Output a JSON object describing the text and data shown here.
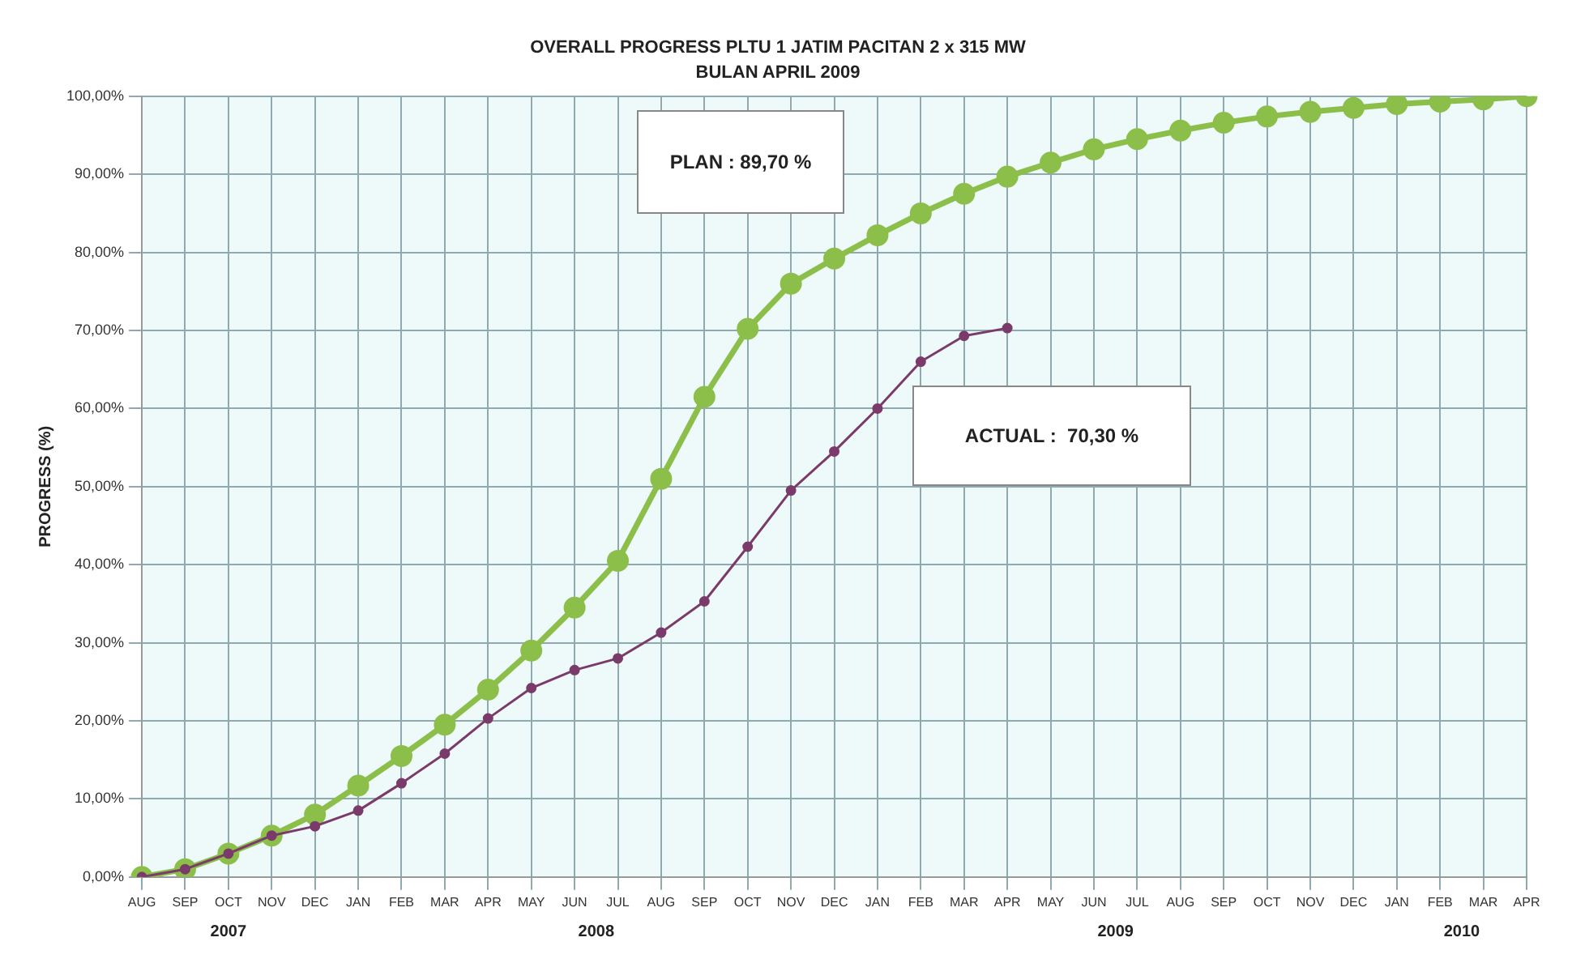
{
  "chart_data": {
    "type": "line",
    "title": "OVERALL PROGRESS PLTU 1 JATIM PACITAN 2 x 315 MW",
    "subtitle": "BULAN APRIL 2009",
    "ylabel": "PROGRESS (%)",
    "categories": [
      "AUG",
      "SEP",
      "OCT",
      "NOV",
      "DEC",
      "JAN",
      "FEB",
      "MAR",
      "APR",
      "MAY",
      "JUN",
      "JUL",
      "AUG",
      "SEP",
      "OCT",
      "NOV",
      "DEC",
      "JAN",
      "FEB",
      "MAR",
      "APR",
      "MAY",
      "JUN",
      "JUL",
      "AUG",
      "SEP",
      "OCT",
      "NOV",
      "DEC",
      "JAN",
      "FEB",
      "MAR",
      "APR"
    ],
    "series": [
      {
        "color": "#8cbf4a",
        "values": [
          0,
          1,
          3,
          5.3,
          8,
          11.7,
          15.5,
          19.5,
          24,
          29,
          34.5,
          40.5,
          51,
          61.5,
          70.2,
          76,
          79.2,
          82.2,
          85,
          87.5,
          89.7,
          91.5,
          93.2,
          94.5,
          95.6,
          96.6,
          97.4,
          98,
          98.5,
          99,
          99.3,
          99.6,
          100
        ]
      },
      {
        "color": "#7a3b6a",
        "values": [
          0,
          1,
          3,
          5.3,
          6.5,
          8.5,
          12,
          15.8,
          20.3,
          24.2,
          26.5,
          28,
          31.3,
          35.3,
          42.3,
          49.5,
          54.5,
          60,
          66,
          69.3,
          70.3,
          null,
          null,
          null,
          null,
          null,
          null,
          null,
          null,
          null,
          null,
          null,
          null
        ]
      }
    ],
    "ylim": [
      0,
      100
    ],
    "yticks": [
      {
        "value": 0,
        "label": "0,00%"
      },
      {
        "value": 10,
        "label": "10,00%"
      },
      {
        "value": 20,
        "label": "20,00%"
      },
      {
        "value": 30,
        "label": "30,00%"
      },
      {
        "value": 40,
        "label": "40,00%"
      },
      {
        "value": 50,
        "label": "50,00%"
      },
      {
        "value": 60,
        "label": "60,00%"
      },
      {
        "value": 70,
        "label": "70,00%"
      },
      {
        "value": 80,
        "label": "80,00%"
      },
      {
        "value": 90,
        "label": "90,00%"
      },
      {
        "value": 100,
        "label": "100,00%"
      }
    ],
    "annotations": [
      "2007",
      "2008",
      "2009",
      "2010",
      "PLAN : 89,70 %",
      "ACTUAL :  70,30 %"
    ],
    "grid": true,
    "legend": false,
    "marker": "circle",
    "line_style": "solid"
  }
}
